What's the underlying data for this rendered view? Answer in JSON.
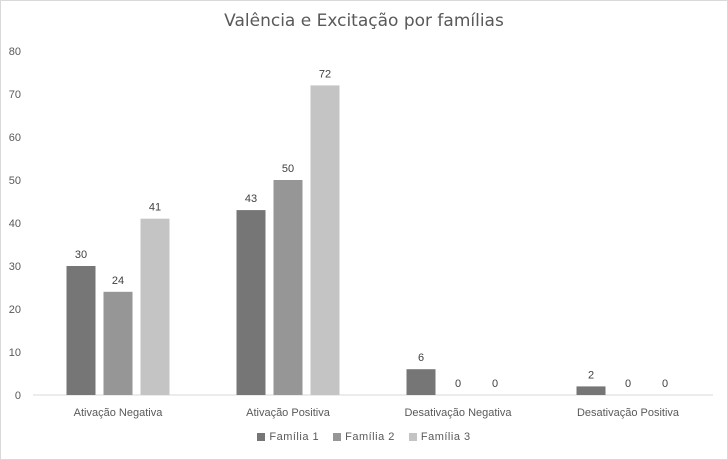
{
  "chart_data": {
    "type": "bar",
    "title": "Valência e Excitação por famílias",
    "xlabel": "",
    "ylabel": "",
    "categories": [
      "Ativação Negativa",
      "Ativação Positiva",
      "Desativação Negativa",
      "Desativação Positiva"
    ],
    "series": [
      {
        "name": "Família 1",
        "color": "#767676",
        "values": [
          30,
          43,
          6,
          2
        ]
      },
      {
        "name": "Família 2",
        "color": "#969696",
        "values": [
          24,
          50,
          0,
          0
        ]
      },
      {
        "name": "Família 3",
        "color": "#c4c4c4",
        "values": [
          41,
          72,
          0,
          0
        ]
      }
    ],
    "ylim": [
      0,
      80
    ],
    "yticks": [
      0,
      10,
      20,
      30,
      40,
      50,
      60,
      70,
      80
    ],
    "grid": false,
    "legend": "bottom",
    "data_labels": true
  }
}
